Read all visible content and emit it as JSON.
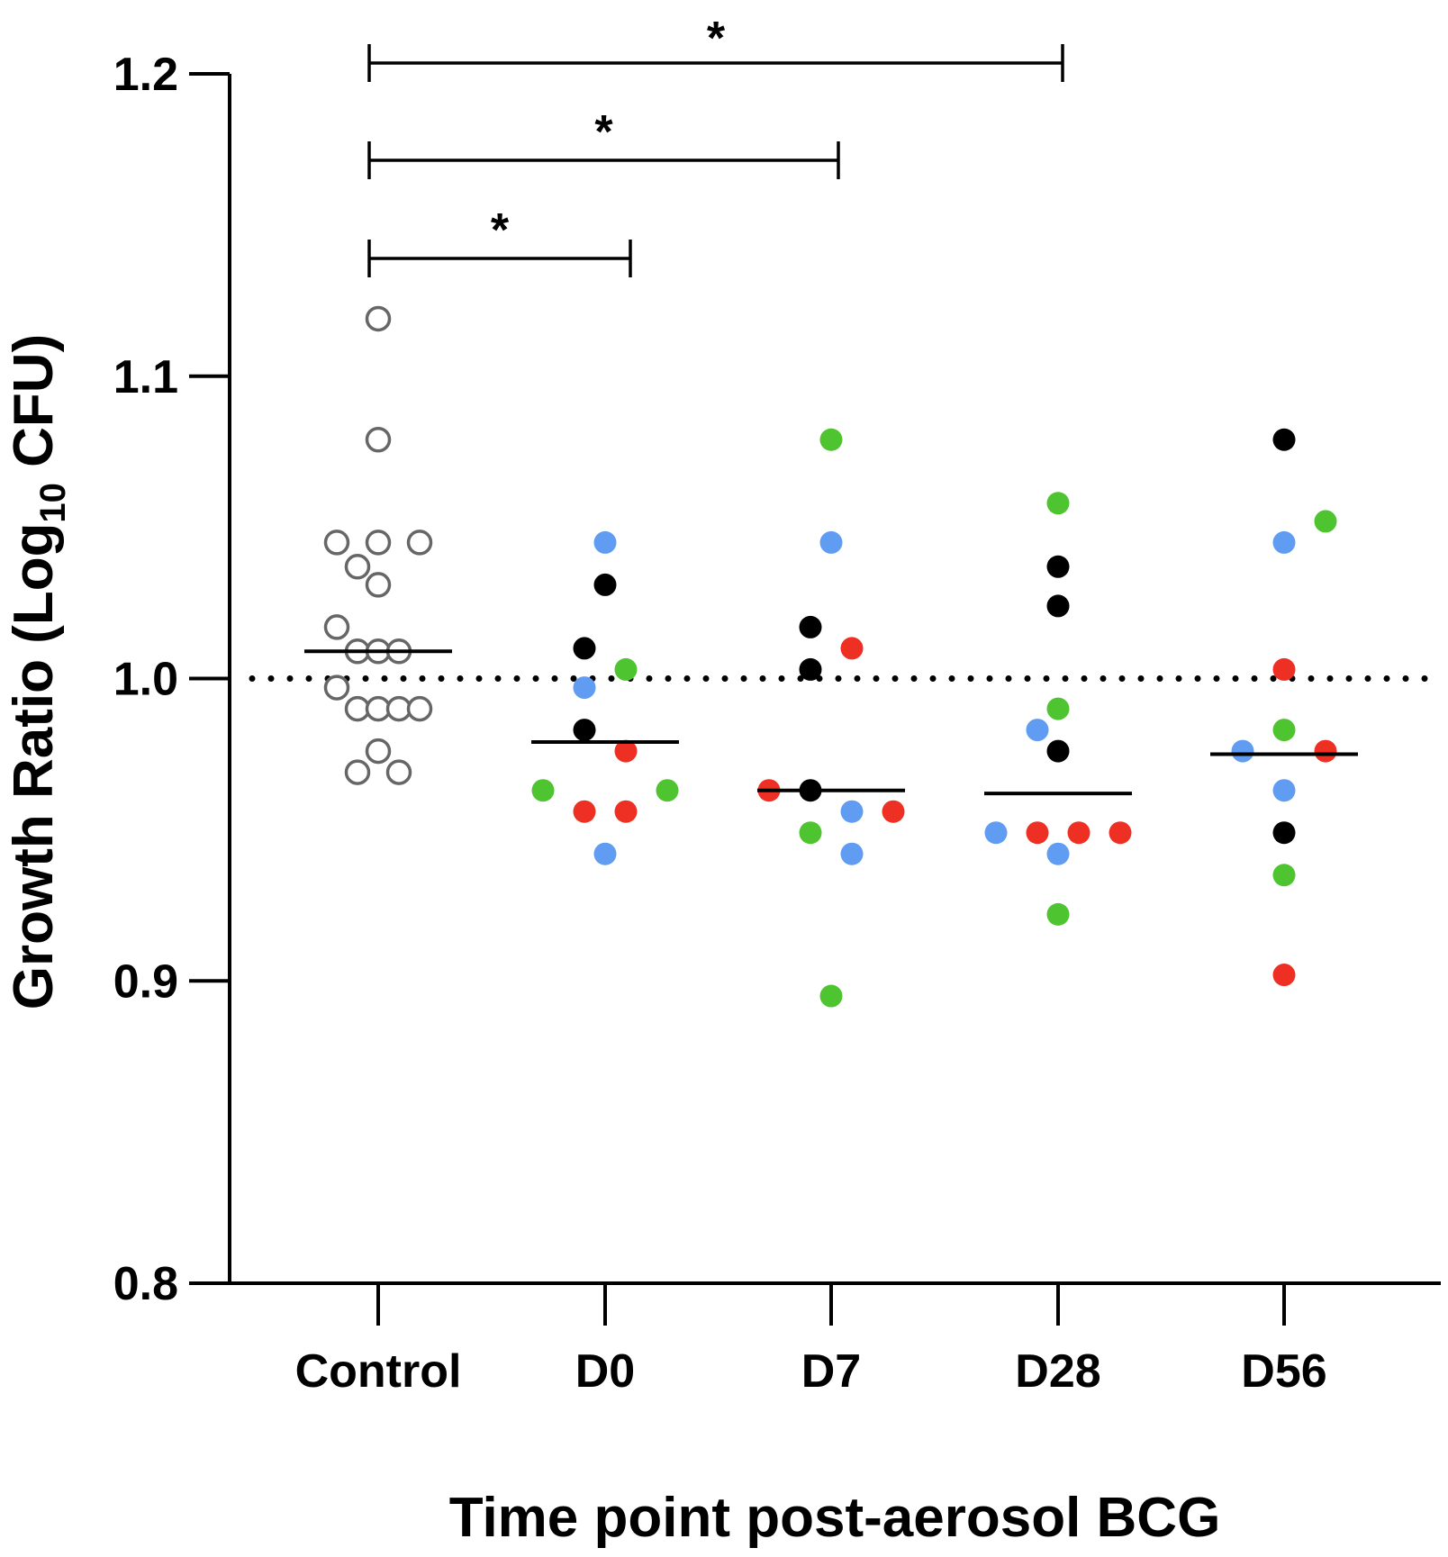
{
  "chart_data": {
    "type": "scatter",
    "title": "",
    "xlabel": "Time point post-aerosol BCG",
    "ylabel_main": "Growth Ratio (Log",
    "ylabel_sub": "10",
    "ylabel_end": " CFU)",
    "ylim": [
      0.8,
      1.2
    ],
    "yticks": [
      "0.8",
      "0.9",
      "1.0",
      "1.1",
      "1.2"
    ],
    "yticks_values": [
      0.8,
      0.9,
      1.0,
      1.1,
      1.2
    ],
    "reference_line": 1.0,
    "categories": [
      "Control",
      "D0",
      "D7",
      "D28",
      "D56"
    ],
    "colors": {
      "control": "#666666",
      "blue": "#5f9cf2",
      "black": "#000000",
      "green": "#4fc431",
      "red": "#ee3024"
    },
    "medians": [
      1.009,
      0.979,
      0.963,
      0.962,
      0.975
    ],
    "points": [
      [
        {
          "o": 0,
          "v": 1.119,
          "c": "control"
        },
        {
          "o": 0,
          "v": 1.079,
          "c": "control"
        },
        {
          "o": -2,
          "v": 1.045,
          "c": "control"
        },
        {
          "o": 0,
          "v": 1.045,
          "c": "control"
        },
        {
          "o": 2,
          "v": 1.045,
          "c": "control"
        },
        {
          "o": -1,
          "v": 1.037,
          "c": "control"
        },
        {
          "o": 0,
          "v": 1.031,
          "c": "control"
        },
        {
          "o": -2,
          "v": 1.017,
          "c": "control"
        },
        {
          "o": -1,
          "v": 1.009,
          "c": "control"
        },
        {
          "o": 0,
          "v": 1.009,
          "c": "control"
        },
        {
          "o": 1,
          "v": 1.009,
          "c": "control"
        },
        {
          "o": -2,
          "v": 0.997,
          "c": "control"
        },
        {
          "o": -1,
          "v": 0.99,
          "c": "control"
        },
        {
          "o": 0,
          "v": 0.99,
          "c": "control"
        },
        {
          "o": 1,
          "v": 0.99,
          "c": "control"
        },
        {
          "o": 2,
          "v": 0.99,
          "c": "control"
        },
        {
          "o": 0,
          "v": 0.976,
          "c": "control"
        },
        {
          "o": -1,
          "v": 0.969,
          "c": "control"
        },
        {
          "o": 1,
          "v": 0.969,
          "c": "control"
        }
      ],
      [
        {
          "o": 0,
          "v": 1.045,
          "c": "blue"
        },
        {
          "o": 0,
          "v": 1.031,
          "c": "black"
        },
        {
          "o": -1,
          "v": 1.01,
          "c": "black"
        },
        {
          "o": 1,
          "v": 1.003,
          "c": "green"
        },
        {
          "o": -1,
          "v": 0.997,
          "c": "blue"
        },
        {
          "o": -1,
          "v": 0.983,
          "c": "black"
        },
        {
          "o": 1,
          "v": 0.976,
          "c": "red"
        },
        {
          "o": -3,
          "v": 0.963,
          "c": "green"
        },
        {
          "o": 3,
          "v": 0.963,
          "c": "green"
        },
        {
          "o": -1,
          "v": 0.956,
          "c": "red"
        },
        {
          "o": 1,
          "v": 0.956,
          "c": "red"
        },
        {
          "o": 0,
          "v": 0.942,
          "c": "blue"
        }
      ],
      [
        {
          "o": 0,
          "v": 1.079,
          "c": "green"
        },
        {
          "o": 0,
          "v": 1.045,
          "c": "blue"
        },
        {
          "o": -1,
          "v": 1.017,
          "c": "black"
        },
        {
          "o": 1,
          "v": 1.01,
          "c": "red"
        },
        {
          "o": -1,
          "v": 1.003,
          "c": "black"
        },
        {
          "o": -3,
          "v": 0.963,
          "c": "red"
        },
        {
          "o": -1,
          "v": 0.963,
          "c": "black"
        },
        {
          "o": 1,
          "v": 0.956,
          "c": "blue"
        },
        {
          "o": 3,
          "v": 0.956,
          "c": "red"
        },
        {
          "o": -1,
          "v": 0.949,
          "c": "green"
        },
        {
          "o": 1,
          "v": 0.942,
          "c": "blue"
        },
        {
          "o": 0,
          "v": 0.895,
          "c": "green"
        }
      ],
      [
        {
          "o": 0,
          "v": 1.058,
          "c": "green"
        },
        {
          "o": 0,
          "v": 1.037,
          "c": "black"
        },
        {
          "o": 0,
          "v": 1.024,
          "c": "black"
        },
        {
          "o": 0,
          "v": 0.99,
          "c": "green"
        },
        {
          "o": -1,
          "v": 0.983,
          "c": "blue"
        },
        {
          "o": 0,
          "v": 0.976,
          "c": "black"
        },
        {
          "o": -3,
          "v": 0.949,
          "c": "blue"
        },
        {
          "o": -1,
          "v": 0.949,
          "c": "red"
        },
        {
          "o": 1,
          "v": 0.949,
          "c": "red"
        },
        {
          "o": 3,
          "v": 0.949,
          "c": "red"
        },
        {
          "o": 0,
          "v": 0.942,
          "c": "blue"
        },
        {
          "o": 0,
          "v": 0.922,
          "c": "green"
        }
      ],
      [
        {
          "o": 0,
          "v": 1.079,
          "c": "black"
        },
        {
          "o": 2,
          "v": 1.052,
          "c": "green"
        },
        {
          "o": 0,
          "v": 1.045,
          "c": "blue"
        },
        {
          "o": 0,
          "v": 1.003,
          "c": "red"
        },
        {
          "o": 0,
          "v": 0.983,
          "c": "green"
        },
        {
          "o": -2,
          "v": 0.976,
          "c": "blue"
        },
        {
          "o": 2,
          "v": 0.976,
          "c": "red"
        },
        {
          "o": 0,
          "v": 0.963,
          "c": "blue"
        },
        {
          "o": 0,
          "v": 0.949,
          "c": "black"
        },
        {
          "o": 0,
          "v": 0.935,
          "c": "green"
        },
        {
          "o": 0,
          "v": 0.902,
          "c": "red"
        }
      ]
    ],
    "comparisons": [
      {
        "from": "Control",
        "to": "D0",
        "label": "*",
        "level": 1
      },
      {
        "from": "Control",
        "to": "D7",
        "label": "*",
        "level": 2
      },
      {
        "from": "Control",
        "to": "D28",
        "label": "*",
        "level": 3
      }
    ]
  }
}
